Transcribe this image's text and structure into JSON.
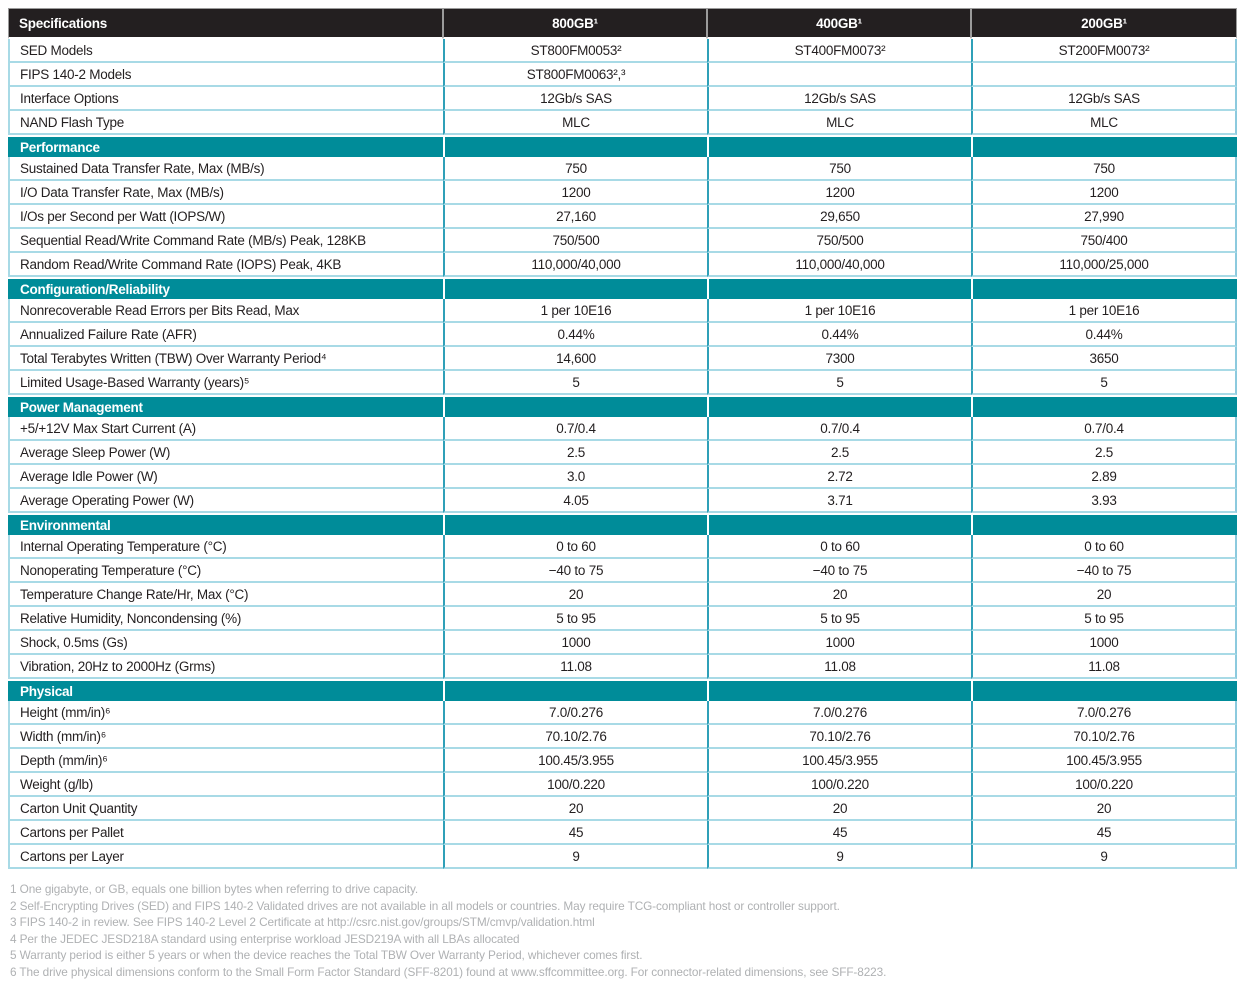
{
  "colors": {
    "header_bg": "#231F20",
    "section_bg": "#008C99",
    "vertical_divider": "#2FA0B8",
    "horizontal_divider": "#A8DAE6",
    "footnote_text": "#AFB1B3"
  },
  "table": {
    "columns": [
      "Specifications",
      "800GB¹",
      "400GB¹",
      "200GB¹"
    ],
    "sections": [
      {
        "title": null,
        "rows": [
          {
            "label": "SED Models",
            "values": [
              "ST800FM0053²",
              "ST400FM0073²",
              "ST200FM0073²"
            ]
          },
          {
            "label": "FIPS 140-2 Models",
            "values": [
              "ST800FM0063²,³",
              "",
              ""
            ]
          },
          {
            "label": "Interface Options",
            "values": [
              "12Gb/s SAS",
              "12Gb/s SAS",
              "12Gb/s SAS"
            ]
          },
          {
            "label": "NAND Flash Type",
            "values": [
              "MLC",
              "MLC",
              "MLC"
            ]
          }
        ]
      },
      {
        "title": "Performance",
        "rows": [
          {
            "label": "Sustained Data Transfer Rate, Max (MB/s)",
            "values": [
              "750",
              "750",
              "750"
            ]
          },
          {
            "label": "I/O Data Transfer Rate, Max (MB/s)",
            "values": [
              "1200",
              "1200",
              "1200"
            ]
          },
          {
            "label": "I/Os per Second per Watt (IOPS/W)",
            "values": [
              "27,160",
              "29,650",
              "27,990"
            ]
          },
          {
            "label": "Sequential Read/Write Command Rate (MB/s) Peak, 128KB",
            "values": [
              "750/500",
              "750/500",
              "750/400"
            ]
          },
          {
            "label": "Random Read/Write Command Rate (IOPS) Peak, 4KB",
            "values": [
              "110,000/40,000",
              "110,000/40,000",
              "110,000/25,000"
            ]
          }
        ]
      },
      {
        "title": "Configuration/Reliability",
        "rows": [
          {
            "label": "Nonrecoverable Read Errors per Bits Read, Max",
            "values": [
              "1 per 10E16",
              "1 per 10E16",
              "1 per 10E16"
            ]
          },
          {
            "label": "Annualized Failure Rate (AFR)",
            "values": [
              "0.44%",
              "0.44%",
              "0.44%"
            ]
          },
          {
            "label": "Total Terabytes Written (TBW) Over Warranty Period⁴",
            "values": [
              "14,600",
              "7300",
              "3650"
            ]
          },
          {
            "label": "Limited Usage-Based Warranty (years)⁵",
            "values": [
              "5",
              "5",
              "5"
            ]
          }
        ]
      },
      {
        "title": "Power Management",
        "rows": [
          {
            "label": "+5/+12V Max Start Current (A)",
            "values": [
              "0.7/0.4",
              "0.7/0.4",
              "0.7/0.4"
            ]
          },
          {
            "label": "Average Sleep Power (W)",
            "values": [
              "2.5",
              "2.5",
              "2.5"
            ]
          },
          {
            "label": "Average Idle Power (W)",
            "values": [
              "3.0",
              "2.72",
              "2.89"
            ]
          },
          {
            "label": "Average Operating Power (W)",
            "values": [
              "4.05",
              "3.71",
              "3.93"
            ]
          }
        ]
      },
      {
        "title": "Environmental",
        "rows": [
          {
            "label": "Internal Operating Temperature  (°C)",
            "values": [
              "0 to 60",
              "0 to 60",
              "0 to 60"
            ]
          },
          {
            "label": "Nonoperating Temperature (°C)",
            "values": [
              "−40 to 75",
              "−40 to 75",
              "−40 to 75"
            ]
          },
          {
            "label": "Temperature Change Rate/Hr, Max (°C)",
            "values": [
              "20",
              "20",
              "20"
            ]
          },
          {
            "label": "Relative Humidity, Noncondensing (%)",
            "values": [
              "5 to 95",
              "5 to 95",
              "5 to 95"
            ]
          },
          {
            "label": "Shock, 0.5ms (Gs)",
            "values": [
              "1000",
              "1000",
              "1000"
            ]
          },
          {
            "label": "Vibration, 20Hz to 2000Hz (Grms)",
            "values": [
              "11.08",
              "11.08",
              "11.08"
            ]
          }
        ]
      },
      {
        "title": "Physical",
        "rows": [
          {
            "label": "Height (mm/in)⁶",
            "values": [
              "7.0/0.276",
              "7.0/0.276",
              "7.0/0.276"
            ]
          },
          {
            "label": "Width (mm/in)⁶",
            "values": [
              "70.10/2.76",
              "70.10/2.76",
              "70.10/2.76"
            ]
          },
          {
            "label": "Depth (mm/in)⁶",
            "values": [
              "100.45/3.955",
              "100.45/3.955",
              "100.45/3.955"
            ]
          },
          {
            "label": "Weight (g/lb)",
            "values": [
              "100/0.220",
              "100/0.220",
              "100/0.220"
            ]
          },
          {
            "label": "Carton Unit Quantity",
            "values": [
              "20",
              "20",
              "20"
            ]
          },
          {
            "label": "Cartons per Pallet",
            "values": [
              "45",
              "45",
              "45"
            ]
          },
          {
            "label": "Cartons per Layer",
            "values": [
              "9",
              "9",
              "9"
            ]
          }
        ]
      }
    ]
  },
  "footnotes": [
    "1 One gigabyte, or GB, equals one billion bytes when referring to drive capacity.",
    "2 Self-Encrypting Drives (SED) and FIPS 140-2 Validated drives are not available in all models or countries. May require TCG-compliant host or controller support.",
    "3 FIPS 140-2 in review. See FIPS 140-2 Level 2 Certificate at http://csrc.nist.gov/groups/STM/cmvp/validation.html",
    "4 Per the JEDEC JESD218A standard using enterprise workload JESD219A with all LBAs allocated",
    "5 Warranty period is either 5 years or when the device reaches the Total TBW Over Warranty Period, whichever comes first.",
    "6 The drive physical dimensions conform to the Small Form Factor Standard (SFF-8201) found at www.sffcommittee.org. For connector-related dimensions, see SFF-8223."
  ]
}
